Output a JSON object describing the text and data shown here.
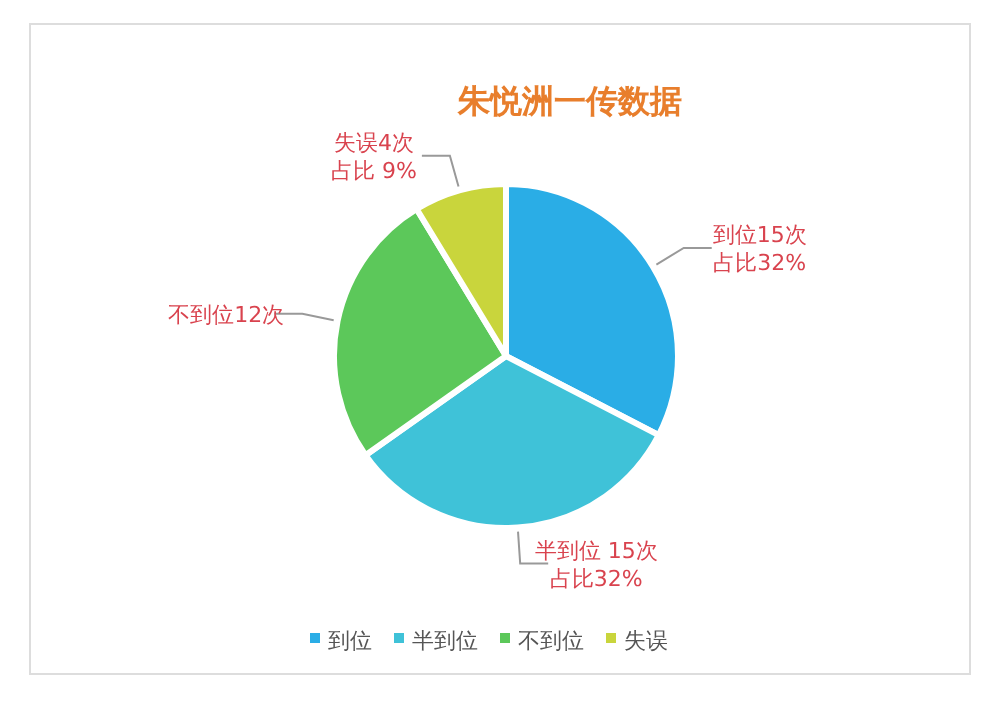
{
  "chart_data": {
    "type": "pie",
    "title": "朱悦洲一传数据",
    "categories": [
      "到位",
      "半到位",
      "不到位",
      "失误"
    ],
    "values": [
      15,
      15,
      12,
      4
    ],
    "colors": [
      "#2aade6",
      "#3fc2d8",
      "#5cc85a",
      "#c9d53c"
    ],
    "value_labels": [
      "到位15次占比32%",
      "半到位 15次占比32%",
      "不到位12次",
      "失误4次占比 9%"
    ],
    "legend": "bottom"
  }
}
